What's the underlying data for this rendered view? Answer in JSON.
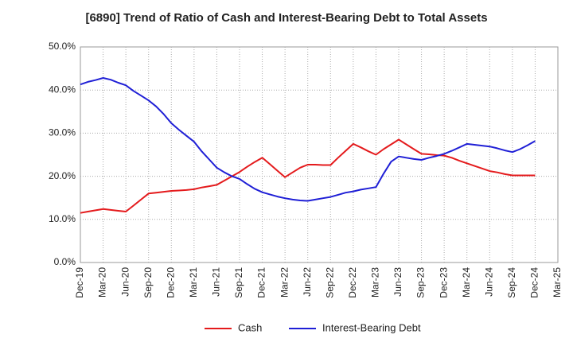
{
  "chart_data": {
    "type": "line",
    "title": "[6890]  Trend of Ratio of Cash and Interest-Bearing Debt to Total Assets",
    "xlabel": "",
    "ylabel": "",
    "ylim": [
      0,
      50
    ],
    "yticks": [
      "0.0%",
      "10.0%",
      "20.0%",
      "30.0%",
      "40.0%",
      "50.0%"
    ],
    "categories": [
      "Dec-19",
      "Mar-20",
      "Jun-20",
      "Sep-20",
      "Dec-20",
      "Mar-21",
      "Jun-21",
      "Sep-21",
      "Dec-21",
      "Mar-22",
      "Jun-22",
      "Sep-22",
      "Dec-22",
      "Mar-23",
      "Jun-23",
      "Sep-23",
      "Dec-23",
      "Mar-24",
      "Jun-24",
      "Sep-24",
      "Dec-24",
      "Mar-25"
    ],
    "grid": true,
    "legend_position": "bottom",
    "series": [
      {
        "name": "Cash",
        "color": "#e41a1c",
        "x": [
          "Dec-19",
          "Jan-20",
          "Feb-20",
          "Mar-20",
          "Apr-20",
          "May-20",
          "Jun-20",
          "Jul-20",
          "Aug-20",
          "Sep-20",
          "Oct-20",
          "Nov-20",
          "Dec-20",
          "Jan-21",
          "Feb-21",
          "Mar-21",
          "Apr-21",
          "May-21",
          "Jun-21",
          "Jul-21",
          "Aug-21",
          "Sep-21",
          "Oct-21",
          "Nov-21",
          "Dec-21",
          "Jan-22",
          "Feb-22",
          "Mar-22",
          "Apr-22",
          "May-22",
          "Jun-22",
          "Jul-22",
          "Aug-22",
          "Sep-22",
          "Oct-22",
          "Nov-22",
          "Dec-22",
          "Jan-23",
          "Feb-23",
          "Mar-23",
          "Apr-23",
          "May-23",
          "Jun-23",
          "Jul-23",
          "Aug-23",
          "Sep-23",
          "Oct-23",
          "Nov-23",
          "Dec-23",
          "Jan-24",
          "Feb-24",
          "Mar-24",
          "Apr-24",
          "May-24",
          "Jun-24",
          "Jul-24",
          "Aug-24",
          "Sep-24",
          "Oct-24",
          "Nov-24",
          "Dec-24"
        ],
        "values": [
          11.5,
          11.8,
          12.1,
          12.4,
          12.2,
          12.0,
          11.8,
          13.2,
          14.6,
          16.0,
          16.2,
          16.4,
          16.6,
          16.7,
          16.8,
          17.0,
          17.4,
          17.7,
          18.0,
          19.0,
          20.0,
          21.0,
          22.2,
          23.3,
          24.3,
          22.8,
          21.3,
          19.8,
          20.9,
          22.0,
          22.7,
          22.7,
          22.6,
          22.6,
          24.3,
          25.9,
          27.5,
          26.7,
          25.8,
          25.0,
          26.3,
          27.4,
          28.5,
          27.4,
          26.3,
          25.2,
          25.1,
          24.9,
          24.8,
          24.3,
          23.6,
          23.0,
          22.4,
          21.8,
          21.2,
          20.9,
          20.5,
          20.2,
          20.2,
          20.2,
          20.2
        ]
      },
      {
        "name": "Interest-Bearing Debt",
        "color": "#1f1fd6",
        "x": [
          "Dec-19",
          "Jan-20",
          "Feb-20",
          "Mar-20",
          "Apr-20",
          "May-20",
          "Jun-20",
          "Jul-20",
          "Aug-20",
          "Sep-20",
          "Oct-20",
          "Nov-20",
          "Dec-20",
          "Jan-21",
          "Feb-21",
          "Mar-21",
          "Apr-21",
          "May-21",
          "Jun-21",
          "Jul-21",
          "Aug-21",
          "Sep-21",
          "Oct-21",
          "Nov-21",
          "Dec-21",
          "Jan-22",
          "Feb-22",
          "Mar-22",
          "Apr-22",
          "May-22",
          "Jun-22",
          "Jul-22",
          "Aug-22",
          "Sep-22",
          "Oct-22",
          "Nov-22",
          "Dec-22",
          "Jan-23",
          "Feb-23",
          "Mar-23",
          "Apr-23",
          "May-23",
          "Jun-23",
          "Jul-23",
          "Aug-23",
          "Sep-23",
          "Oct-23",
          "Nov-23",
          "Dec-23",
          "Jan-24",
          "Feb-24",
          "Mar-24",
          "Apr-24",
          "May-24",
          "Jun-24",
          "Jul-24",
          "Aug-24",
          "Sep-24",
          "Oct-24",
          "Nov-24",
          "Dec-24"
        ],
        "values": [
          41.3,
          41.9,
          42.3,
          42.8,
          42.4,
          41.7,
          41.1,
          39.8,
          38.7,
          37.6,
          36.2,
          34.4,
          32.3,
          30.8,
          29.4,
          28.0,
          25.8,
          23.9,
          22.0,
          20.9,
          20.0,
          19.4,
          18.2,
          17.1,
          16.3,
          15.8,
          15.3,
          14.9,
          14.6,
          14.4,
          14.3,
          14.6,
          14.9,
          15.2,
          15.7,
          16.2,
          16.5,
          16.9,
          17.2,
          17.5,
          20.6,
          23.4,
          24.6,
          24.3,
          24.0,
          23.8,
          24.3,
          24.7,
          25.2,
          25.9,
          26.7,
          27.5,
          27.3,
          27.1,
          26.9,
          26.5,
          26.0,
          25.6,
          26.3,
          27.2,
          28.2
        ]
      }
    ]
  }
}
